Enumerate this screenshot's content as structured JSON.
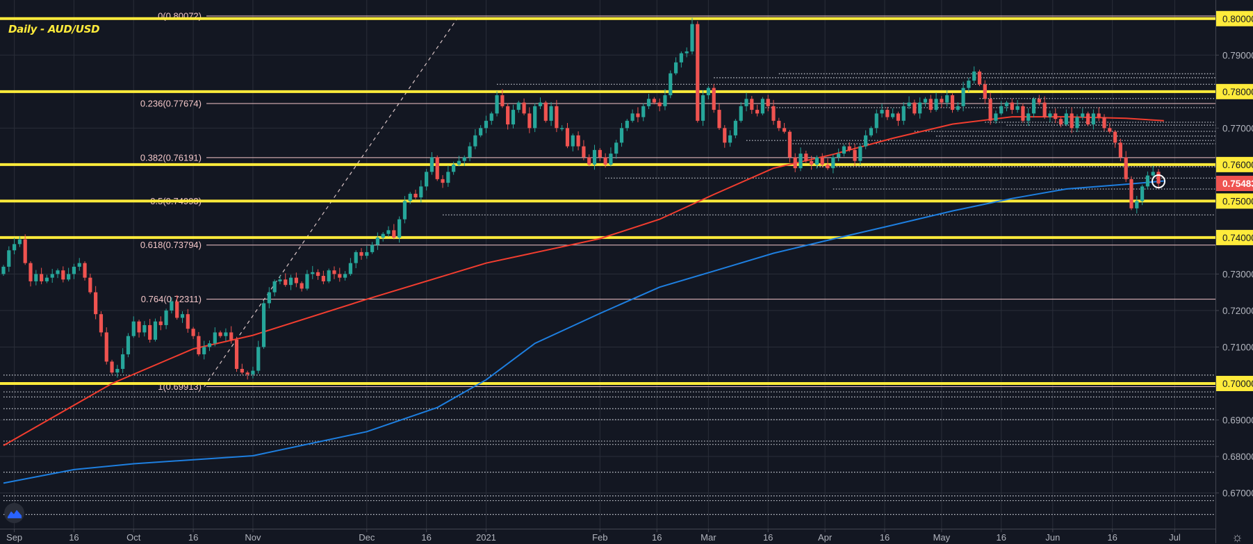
{
  "title": "Daily - AUD/USD",
  "chart_data": {
    "type": "candlestick",
    "title": "Daily - AUD/USD",
    "xlabel": "",
    "ylabel": "",
    "ylim": [
      0.6602,
      0.8051
    ],
    "grid": true,
    "first_open": 0.73,
    "closes": [
      0.732,
      0.7365,
      0.7382,
      0.7395,
      0.733,
      0.728,
      0.73,
      0.728,
      0.729,
      0.73,
      0.731,
      0.7285,
      0.73,
      0.732,
      0.733,
      0.729,
      0.725,
      0.719,
      0.714,
      0.706,
      0.703,
      0.704,
      0.708,
      0.713,
      0.717,
      0.714,
      0.716,
      0.712,
      0.717,
      0.716,
      0.72,
      0.7225,
      0.718,
      0.719,
      0.715,
      0.713,
      0.708,
      0.71,
      0.711,
      0.714,
      0.713,
      0.714,
      0.712,
      0.704,
      0.703,
      0.7025,
      0.7035,
      0.71,
      0.722,
      0.725,
      0.728,
      0.7285,
      0.727,
      0.729,
      0.7275,
      0.726,
      0.73,
      0.7305,
      0.7295,
      0.728,
      0.731,
      0.73,
      0.729,
      0.73,
      0.733,
      0.736,
      0.735,
      0.736,
      0.738,
      0.74,
      0.741,
      0.742,
      0.74,
      0.745,
      0.75,
      0.752,
      0.751,
      0.754,
      0.758,
      0.762,
      0.756,
      0.755,
      0.758,
      0.76,
      0.761,
      0.762,
      0.765,
      0.768,
      0.77,
      0.772,
      0.774,
      0.779,
      0.776,
      0.771,
      0.775,
      0.777,
      0.774,
      0.77,
      0.776,
      0.777,
      0.772,
      0.776,
      0.77,
      0.77,
      0.765,
      0.768,
      0.765,
      0.762,
      0.76,
      0.764,
      0.762,
      0.76,
      0.763,
      0.766,
      0.77,
      0.772,
      0.774,
      0.773,
      0.776,
      0.778,
      0.777,
      0.776,
      0.779,
      0.785,
      0.788,
      0.7905,
      0.791,
      0.7985,
      0.772,
      0.779,
      0.781,
      0.775,
      0.77,
      0.766,
      0.768,
      0.772,
      0.776,
      0.778,
      0.775,
      0.774,
      0.778,
      0.776,
      0.772,
      0.77,
      0.769,
      0.762,
      0.759,
      0.763,
      0.761,
      0.76,
      0.762,
      0.76,
      0.759,
      0.762,
      0.763,
      0.765,
      0.764,
      0.761,
      0.765,
      0.768,
      0.77,
      0.774,
      0.775,
      0.773,
      0.774,
      0.772,
      0.776,
      0.777,
      0.774,
      0.777,
      0.778,
      0.775,
      0.778,
      0.777,
      0.779,
      0.775,
      0.776,
      0.781,
      0.783,
      0.7855,
      0.782,
      0.778,
      0.772,
      0.774,
      0.776,
      0.777,
      0.775,
      0.776,
      0.772,
      0.774,
      0.778,
      0.777,
      0.773,
      0.774,
      0.7725,
      0.771,
      0.774,
      0.77,
      0.773,
      0.774,
      0.771,
      0.774,
      0.773,
      0.77,
      0.769,
      0.766,
      0.762,
      0.756,
      0.748,
      0.75,
      0.754,
      0.757,
      0.758,
      0.7548
    ],
    "ma_red": [
      [
        0,
        0.683
      ],
      [
        20,
        0.7
      ],
      [
        35,
        0.7095
      ],
      [
        46,
        0.7132
      ],
      [
        67,
        0.7231
      ],
      [
        89,
        0.733
      ],
      [
        110,
        0.7397
      ],
      [
        121,
        0.745
      ],
      [
        131,
        0.7518
      ],
      [
        142,
        0.759
      ],
      [
        153,
        0.7628
      ],
      [
        164,
        0.7672
      ],
      [
        175,
        0.7711
      ],
      [
        186,
        0.7731
      ],
      [
        196,
        0.7731
      ],
      [
        207,
        0.7727
      ],
      [
        214,
        0.772
      ]
    ],
    "ma_blue": [
      [
        0,
        0.6727
      ],
      [
        13,
        0.6764
      ],
      [
        24,
        0.678
      ],
      [
        46,
        0.6802
      ],
      [
        67,
        0.6868
      ],
      [
        80,
        0.6934
      ],
      [
        89,
        0.701
      ],
      [
        98,
        0.711
      ],
      [
        110,
        0.7192
      ],
      [
        121,
        0.7264
      ],
      [
        131,
        0.7308
      ],
      [
        142,
        0.7357
      ],
      [
        153,
        0.7396
      ],
      [
        164,
        0.7434
      ],
      [
        175,
        0.7473
      ],
      [
        186,
        0.7507
      ],
      [
        196,
        0.7533
      ],
      [
        207,
        0.7546
      ],
      [
        214,
        0.7555
      ]
    ],
    "horizontal_levels": [
      0.8,
      0.78,
      0.76,
      0.75,
      0.74,
      0.7
    ],
    "fib_levels": [
      {
        "price": 0.80072,
        "label": "0(0.80072)"
      },
      {
        "price": 0.77674,
        "label": "0.236(0.77674)"
      },
      {
        "price": 0.76191,
        "label": "0.382(0.76191)"
      },
      {
        "price": 0.74993,
        "label": "0.5(0.74993)"
      },
      {
        "price": 0.73794,
        "label": "0.618(0.73794)"
      },
      {
        "price": 0.72311,
        "label": "0.764(0.72311)"
      },
      {
        "price": 0.69913,
        "label": "1(0.69913)"
      }
    ],
    "fib_trend": [
      [
        37,
        0.69913
      ],
      [
        84,
        0.80072
      ]
    ],
    "dotted_levels": [
      {
        "price": 0.7849,
        "start": 143
      },
      {
        "price": 0.7838,
        "start": 131
      },
      {
        "price": 0.782,
        "start": 91
      },
      {
        "price": 0.7781,
        "start": 180
      },
      {
        "price": 0.7756,
        "start": 140
      },
      {
        "price": 0.7716,
        "start": 181
      },
      {
        "price": 0.7708,
        "start": 185
      },
      {
        "price": 0.7691,
        "start": 168
      },
      {
        "price": 0.7678,
        "start": 172
      },
      {
        "price": 0.7666,
        "start": 137
      },
      {
        "price": 0.7657,
        "start": 145
      },
      {
        "price": 0.7594,
        "start": 150
      },
      {
        "price": 0.7563,
        "start": 111
      },
      {
        "price": 0.7533,
        "start": 153
      },
      {
        "price": 0.7462,
        "start": 81
      },
      {
        "price": 0.7023,
        "start": 0
      },
      {
        "price": 0.6977,
        "start": 0
      },
      {
        "price": 0.6963,
        "start": 0
      },
      {
        "price": 0.6931,
        "start": 0
      },
      {
        "price": 0.6901,
        "start": 0
      },
      {
        "price": 0.6842,
        "start": 0
      },
      {
        "price": 0.6833,
        "start": 0
      },
      {
        "price": 0.6757,
        "start": 0
      },
      {
        "price": 0.6692,
        "start": 0
      },
      {
        "price": 0.6679,
        "start": 0
      },
      {
        "price": 0.6641,
        "start": 0
      }
    ],
    "price_ticks": [
      {
        "price": 0.8,
        "label": "0.80000",
        "kind": "level"
      },
      {
        "price": 0.79,
        "label": "0.79000",
        "kind": "plain"
      },
      {
        "price": 0.78,
        "label": "0.78000",
        "kind": "level"
      },
      {
        "price": 0.77,
        "label": "0.77000",
        "kind": "plain"
      },
      {
        "price": 0.76,
        "label": "0.76000",
        "kind": "level"
      },
      {
        "price": 0.75,
        "label": "0.75000",
        "kind": "level"
      },
      {
        "price": 0.74,
        "label": "0.74000",
        "kind": "level"
      },
      {
        "price": 0.73,
        "label": "0.73000",
        "kind": "plain"
      },
      {
        "price": 0.72,
        "label": "0.72000",
        "kind": "plain"
      },
      {
        "price": 0.71,
        "label": "0.71000",
        "kind": "plain"
      },
      {
        "price": 0.7,
        "label": "0.70000",
        "kind": "level"
      },
      {
        "price": 0.69,
        "label": "0.69000",
        "kind": "plain"
      },
      {
        "price": 0.68,
        "label": "0.68000",
        "kind": "plain"
      },
      {
        "price": 0.67,
        "label": "0.67000",
        "kind": "plain"
      }
    ],
    "last_price": {
      "price": 0.75483,
      "label": "0.75483"
    },
    "time_ticks": [
      {
        "label": "Sep",
        "index": 2
      },
      {
        "label": "16",
        "index": 13
      },
      {
        "label": "Oct",
        "index": 24
      },
      {
        "label": "16",
        "index": 35
      },
      {
        "label": "Nov",
        "index": 46
      },
      {
        "label": "Dec",
        "index": 67
      },
      {
        "label": "16",
        "index": 78
      },
      {
        "label": "2021",
        "index": 89
      },
      {
        "label": "Feb",
        "index": 110
      },
      {
        "label": "16",
        "index": 120.5
      },
      {
        "label": "Mar",
        "index": 130
      },
      {
        "label": "16",
        "index": 141
      },
      {
        "label": "Apr",
        "index": 151.5
      },
      {
        "label": "16",
        "index": 162.5
      },
      {
        "label": "May",
        "index": 173
      },
      {
        "label": "16",
        "index": 184
      },
      {
        "label": "Jun",
        "index": 193.5
      },
      {
        "label": "16",
        "index": 204.5
      },
      {
        "label": "Jul",
        "index": 216
      }
    ],
    "colors": {
      "background": "#131722",
      "grid": "#2a2e39",
      "up": "#26a69a",
      "down": "#ef5350",
      "level": "#ffeb3b",
      "fib": "#f4c7c9",
      "ma_red": "#f23d2f",
      "ma_blue": "#1e7fe0",
      "axis_text": "#b2b5be"
    }
  }
}
